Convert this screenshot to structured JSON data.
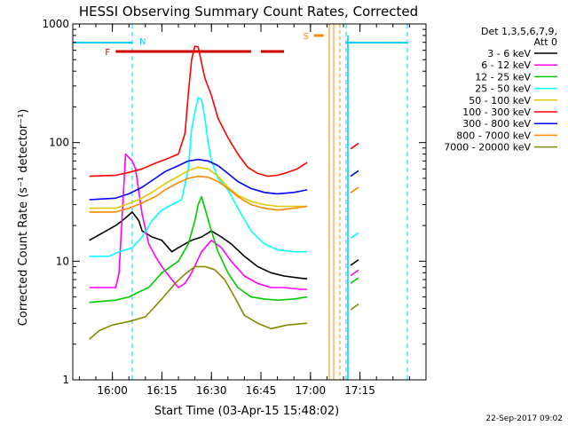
{
  "chart_data": {
    "type": "line",
    "title": "HESSI Observing Summary Count Rates, Corrected",
    "xlabel": "Start Time (03-Apr-15 15:48:02)",
    "ylabel": "Corrected Count Rate (s⁻¹ detector⁻¹)",
    "yscale": "log",
    "ylim": [
      1,
      1000
    ],
    "xlim": [
      "15:48",
      "17:35"
    ],
    "y_ticks": [
      "1",
      "10",
      "100",
      "1000"
    ],
    "x_ticks": [
      "16:00",
      "16:15",
      "16:30",
      "16:45",
      "17:00",
      "17:15"
    ],
    "x_tick_minutes": [
      720,
      735,
      750,
      765,
      780,
      795
    ],
    "x_range_minutes": [
      708,
      815
    ],
    "timestamp": "22-Sep-2017 09:02",
    "legend_header": [
      "Det 1,3,5,6,7,9,",
      "Att 0"
    ],
    "legend_placement": "outside-right",
    "series": [
      {
        "name": "3 - 6 keV",
        "color": "#000000",
        "points": [
          [
            713,
            15
          ],
          [
            721,
            20
          ],
          [
            723,
            22
          ],
          [
            726,
            26
          ],
          [
            728,
            22
          ],
          [
            729,
            18
          ],
          [
            732,
            16
          ],
          [
            735,
            15
          ],
          [
            738,
            12
          ],
          [
            740,
            13
          ],
          [
            742,
            14
          ],
          [
            744,
            15
          ],
          [
            747,
            16
          ],
          [
            750,
            18
          ],
          [
            753,
            16
          ],
          [
            756,
            14
          ],
          [
            760,
            11
          ],
          [
            764,
            9
          ],
          [
            768,
            8
          ],
          [
            772,
            7.5
          ],
          [
            777,
            7.2
          ],
          [
            779,
            7.1
          ]
        ]
      },
      {
        "name": "6 - 12 keV",
        "color": "#ff00ff",
        "points": [
          [
            713,
            6
          ],
          [
            721,
            6
          ],
          [
            722,
            8
          ],
          [
            724,
            80
          ],
          [
            726,
            70
          ],
          [
            727,
            60
          ],
          [
            729,
            25
          ],
          [
            731,
            14
          ],
          [
            733,
            11
          ],
          [
            735,
            9
          ],
          [
            738,
            7
          ],
          [
            740,
            6
          ],
          [
            742,
            6.5
          ],
          [
            744,
            8
          ],
          [
            747,
            12
          ],
          [
            750,
            15
          ],
          [
            753,
            13
          ],
          [
            756,
            10
          ],
          [
            760,
            7.5
          ],
          [
            764,
            6.5
          ],
          [
            768,
            6
          ],
          [
            772,
            6
          ],
          [
            777,
            5.8
          ],
          [
            779,
            5.8
          ]
        ]
      },
      {
        "name": "12 - 25 keV",
        "color": "#00cc00",
        "points": [
          [
            713,
            4.5
          ],
          [
            721,
            4.7
          ],
          [
            725,
            5
          ],
          [
            728,
            5.5
          ],
          [
            731,
            6
          ],
          [
            735,
            8
          ],
          [
            740,
            10
          ],
          [
            743,
            14
          ],
          [
            745,
            22
          ],
          [
            746,
            30
          ],
          [
            747,
            35
          ],
          [
            748,
            28
          ],
          [
            750,
            18
          ],
          [
            752,
            12
          ],
          [
            755,
            8
          ],
          [
            758,
            6
          ],
          [
            762,
            5
          ],
          [
            766,
            4.8
          ],
          [
            770,
            4.7
          ],
          [
            775,
            4.8
          ],
          [
            779,
            5
          ]
        ]
      },
      {
        "name": "25 - 50 keV",
        "color": "#00ffff",
        "points": [
          [
            713,
            11
          ],
          [
            719,
            11
          ],
          [
            722,
            12
          ],
          [
            726,
            13
          ],
          [
            729,
            16
          ],
          [
            732,
            22
          ],
          [
            735,
            27
          ],
          [
            738,
            30
          ],
          [
            741,
            33
          ],
          [
            743,
            60
          ],
          [
            744,
            130
          ],
          [
            745,
            180
          ],
          [
            746,
            240
          ],
          [
            747,
            230
          ],
          [
            748,
            160
          ],
          [
            749,
            100
          ],
          [
            750,
            70
          ],
          [
            752,
            50
          ],
          [
            755,
            40
          ],
          [
            758,
            28
          ],
          [
            762,
            18
          ],
          [
            766,
            14
          ],
          [
            770,
            12.5
          ],
          [
            775,
            12
          ],
          [
            779,
            12
          ]
        ]
      },
      {
        "name": "50 - 100 keV",
        "color": "#e0c800",
        "points": [
          [
            713,
            28
          ],
          [
            721,
            28
          ],
          [
            724,
            30
          ],
          [
            728,
            33
          ],
          [
            732,
            38
          ],
          [
            736,
            45
          ],
          [
            740,
            52
          ],
          [
            743,
            58
          ],
          [
            746,
            62
          ],
          [
            749,
            60
          ],
          [
            752,
            52
          ],
          [
            755,
            42
          ],
          [
            758,
            36
          ],
          [
            762,
            32
          ],
          [
            766,
            30
          ],
          [
            770,
            29
          ],
          [
            775,
            29
          ],
          [
            779,
            29
          ]
        ]
      },
      {
        "name": "100 - 300 keV",
        "color": "#ff0000",
        "points": [
          [
            713,
            52
          ],
          [
            721,
            53
          ],
          [
            725,
            56
          ],
          [
            729,
            60
          ],
          [
            733,
            67
          ],
          [
            736,
            72
          ],
          [
            740,
            80
          ],
          [
            742,
            120
          ],
          [
            743,
            260
          ],
          [
            744,
            500
          ],
          [
            745,
            650
          ],
          [
            746,
            640
          ],
          [
            747,
            470
          ],
          [
            748,
            350
          ],
          [
            750,
            250
          ],
          [
            752,
            160
          ],
          [
            755,
            110
          ],
          [
            758,
            80
          ],
          [
            761,
            62
          ],
          [
            764,
            55
          ],
          [
            767,
            52
          ],
          [
            770,
            53
          ],
          [
            773,
            56
          ],
          [
            776,
            60
          ],
          [
            779,
            68
          ]
        ]
      },
      {
        "name": "300 - 800 keV",
        "color": "#0000ff",
        "points": [
          [
            713,
            33
          ],
          [
            721,
            34
          ],
          [
            725,
            37
          ],
          [
            729,
            42
          ],
          [
            733,
            50
          ],
          [
            736,
            57
          ],
          [
            740,
            64
          ],
          [
            743,
            70
          ],
          [
            746,
            72
          ],
          [
            749,
            70
          ],
          [
            752,
            64
          ],
          [
            755,
            55
          ],
          [
            758,
            47
          ],
          [
            762,
            41
          ],
          [
            766,
            38
          ],
          [
            770,
            37
          ],
          [
            775,
            38
          ],
          [
            779,
            40
          ]
        ]
      },
      {
        "name": "800 - 7000 keV",
        "color": "#ff8800",
        "points": [
          [
            713,
            26
          ],
          [
            721,
            26
          ],
          [
            725,
            28
          ],
          [
            729,
            31
          ],
          [
            733,
            35
          ],
          [
            736,
            40
          ],
          [
            740,
            46
          ],
          [
            743,
            50
          ],
          [
            746,
            52
          ],
          [
            749,
            51
          ],
          [
            752,
            47
          ],
          [
            755,
            41
          ],
          [
            758,
            35
          ],
          [
            762,
            30
          ],
          [
            766,
            28
          ],
          [
            770,
            27
          ],
          [
            775,
            28
          ],
          [
            779,
            29
          ]
        ]
      },
      {
        "name": "7000 - 20000 keV",
        "color": "#888800",
        "points": [
          [
            713,
            2.2
          ],
          [
            716,
            2.6
          ],
          [
            720,
            2.9
          ],
          [
            725,
            3.1
          ],
          [
            730,
            3.4
          ],
          [
            735,
            4.8
          ],
          [
            739,
            6.5
          ],
          [
            742,
            7.8
          ],
          [
            745,
            9
          ],
          [
            748,
            9
          ],
          [
            751,
            8.5
          ],
          [
            754,
            7
          ],
          [
            757,
            5
          ],
          [
            760,
            3.5
          ],
          [
            764,
            3
          ],
          [
            768,
            2.7
          ],
          [
            773,
            2.9
          ],
          [
            779,
            3
          ]
        ]
      }
    ],
    "flare_bars": [
      {
        "label": "F",
        "color": "#cc0000",
        "segments": [
          [
            721,
            762
          ],
          [
            765,
            772
          ]
        ]
      },
      {
        "label": "S",
        "color": "#ff8800",
        "segments": [
          [
            781,
            784
          ]
        ]
      }
    ],
    "night_markers": [
      {
        "label": "N",
        "color": "#00ccff"
      }
    ]
  }
}
